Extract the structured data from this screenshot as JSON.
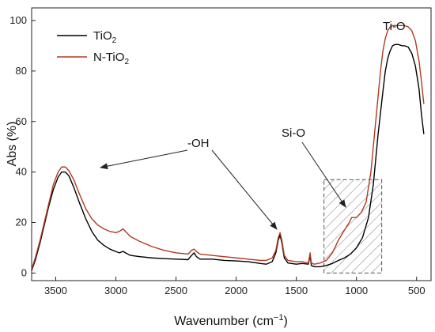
{
  "chart_data": {
    "type": "line",
    "xlabel": "Wavenumber (cm",
    "xlabel_sup": "−1",
    "xlabel_close": ")",
    "ylabel": "Abs (%)",
    "xlim": [
      3700,
      380
    ],
    "ylim": [
      -3,
      105
    ],
    "x_reversed": true,
    "grid": false,
    "legend_position": "top-left",
    "x_ticks": [
      3500,
      3000,
      2500,
      2000,
      1500,
      1000,
      500
    ],
    "y_ticks": [
      0,
      20,
      40,
      60,
      80,
      100
    ],
    "series": [
      {
        "name": "TiO2",
        "label_base": "TiO",
        "label_sub": "2",
        "label_tail": "",
        "color": "#000000",
        "points": [
          [
            3700,
            1
          ],
          [
            3670,
            5
          ],
          [
            3630,
            12
          ],
          [
            3600,
            18
          ],
          [
            3560,
            26
          ],
          [
            3520,
            33
          ],
          [
            3480,
            38
          ],
          [
            3450,
            40
          ],
          [
            3420,
            40
          ],
          [
            3390,
            38.5
          ],
          [
            3350,
            34
          ],
          [
            3300,
            27.5
          ],
          [
            3250,
            21.5
          ],
          [
            3200,
            16.5
          ],
          [
            3150,
            13
          ],
          [
            3100,
            11
          ],
          [
            3050,
            9.5
          ],
          [
            3000,
            8.5
          ],
          [
            2970,
            8
          ],
          [
            2940,
            8.6
          ],
          [
            2920,
            8
          ],
          [
            2880,
            7
          ],
          [
            2800,
            6.5
          ],
          [
            2700,
            6
          ],
          [
            2600,
            5.7
          ],
          [
            2500,
            5.5
          ],
          [
            2400,
            5.3
          ],
          [
            2370,
            7
          ],
          [
            2350,
            8
          ],
          [
            2330,
            6.5
          ],
          [
            2300,
            5.5
          ],
          [
            2200,
            5.5
          ],
          [
            2100,
            5
          ],
          [
            2000,
            4.8
          ],
          [
            1900,
            4.5
          ],
          [
            1800,
            3.8
          ],
          [
            1750,
            3.5
          ],
          [
            1700,
            4.5
          ],
          [
            1670,
            8
          ],
          [
            1650,
            13
          ],
          [
            1635,
            15
          ],
          [
            1620,
            12
          ],
          [
            1600,
            6
          ],
          [
            1570,
            4
          ],
          [
            1500,
            3.5
          ],
          [
            1450,
            3.8
          ],
          [
            1400,
            3.5
          ],
          [
            1385,
            7
          ],
          [
            1375,
            3
          ],
          [
            1350,
            2.5
          ],
          [
            1300,
            2.5
          ],
          [
            1250,
            3
          ],
          [
            1200,
            3.8
          ],
          [
            1150,
            5
          ],
          [
            1100,
            6
          ],
          [
            1050,
            7.5
          ],
          [
            1000,
            10
          ],
          [
            950,
            14
          ],
          [
            900,
            22
          ],
          [
            860,
            35
          ],
          [
            820,
            55
          ],
          [
            780,
            72
          ],
          [
            760,
            80
          ],
          [
            740,
            85
          ],
          [
            720,
            88
          ],
          [
            700,
            90
          ],
          [
            680,
            90.5
          ],
          [
            650,
            90.5
          ],
          [
            620,
            90
          ],
          [
            600,
            90
          ],
          [
            570,
            89.5
          ],
          [
            540,
            87
          ],
          [
            510,
            82
          ],
          [
            480,
            73
          ],
          [
            460,
            63
          ],
          [
            440,
            55
          ]
        ]
      },
      {
        "name": "N-TiO2",
        "label_base": "N-TiO",
        "label_sub": "2",
        "label_tail": "",
        "color": "#b23a1e",
        "points": [
          [
            3700,
            1.5
          ],
          [
            3670,
            6
          ],
          [
            3630,
            13
          ],
          [
            3600,
            19
          ],
          [
            3560,
            27
          ],
          [
            3520,
            35
          ],
          [
            3480,
            40
          ],
          [
            3450,
            42
          ],
          [
            3420,
            42
          ],
          [
            3390,
            40.5
          ],
          [
            3350,
            37
          ],
          [
            3300,
            31
          ],
          [
            3250,
            25.5
          ],
          [
            3200,
            21.5
          ],
          [
            3150,
            19
          ],
          [
            3100,
            17.5
          ],
          [
            3050,
            16.5
          ],
          [
            3000,
            16
          ],
          [
            2970,
            16.5
          ],
          [
            2940,
            17.5
          ],
          [
            2920,
            16.5
          ],
          [
            2880,
            14.5
          ],
          [
            2800,
            12.5
          ],
          [
            2700,
            10.5
          ],
          [
            2600,
            9
          ],
          [
            2500,
            8
          ],
          [
            2400,
            7.5
          ],
          [
            2370,
            9
          ],
          [
            2350,
            9.5
          ],
          [
            2330,
            8.5
          ],
          [
            2300,
            7.5
          ],
          [
            2200,
            7
          ],
          [
            2100,
            6.5
          ],
          [
            2000,
            6
          ],
          [
            1900,
            5.5
          ],
          [
            1800,
            5
          ],
          [
            1750,
            5
          ],
          [
            1700,
            6
          ],
          [
            1670,
            9
          ],
          [
            1650,
            14
          ],
          [
            1635,
            16
          ],
          [
            1620,
            13
          ],
          [
            1600,
            7
          ],
          [
            1570,
            5
          ],
          [
            1500,
            4.5
          ],
          [
            1450,
            4.5
          ],
          [
            1400,
            4
          ],
          [
            1385,
            8
          ],
          [
            1375,
            4
          ],
          [
            1350,
            3.5
          ],
          [
            1300,
            4
          ],
          [
            1250,
            5
          ],
          [
            1200,
            8
          ],
          [
            1150,
            13
          ],
          [
            1100,
            17
          ],
          [
            1060,
            20
          ],
          [
            1040,
            22
          ],
          [
            1000,
            22
          ],
          [
            960,
            24
          ],
          [
            920,
            28
          ],
          [
            880,
            40
          ],
          [
            840,
            60
          ],
          [
            800,
            80
          ],
          [
            780,
            88
          ],
          [
            760,
            93
          ],
          [
            740,
            96
          ],
          [
            720,
            97.5
          ],
          [
            700,
            98
          ],
          [
            680,
            98
          ],
          [
            650,
            98
          ],
          [
            620,
            98
          ],
          [
            600,
            98
          ],
          [
            570,
            97.5
          ],
          [
            540,
            96
          ],
          [
            510,
            92
          ],
          [
            480,
            84
          ],
          [
            460,
            76
          ],
          [
            440,
            67
          ]
        ]
      }
    ],
    "annotations": [
      {
        "label": "-OH"
      },
      {
        "label": "Si-O"
      },
      {
        "label": "Ti-O"
      }
    ],
    "highlight_region": {
      "x_range": [
        1270,
        790
      ],
      "y_range": [
        0,
        37
      ]
    }
  }
}
